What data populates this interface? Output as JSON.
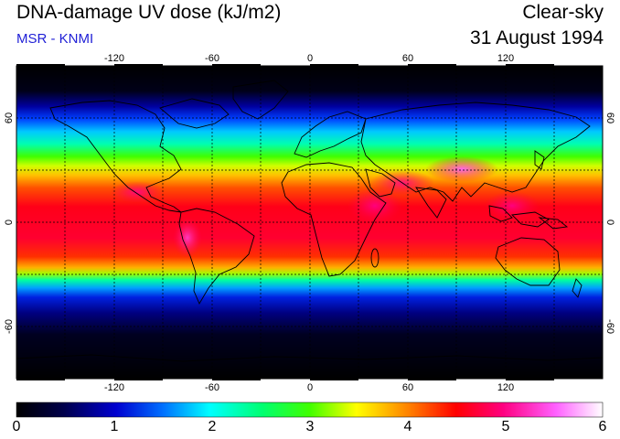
{
  "header": {
    "title": "DNA-damage UV dose (kJ/m2)",
    "subtitle": "MSR - KNMI",
    "condition": "Clear-sky",
    "date": "31 August 1994"
  },
  "map": {
    "longitude_ticks": [
      "-120",
      "-60",
      "0",
      "60",
      "120"
    ],
    "latitude_ticks": [
      "60",
      "0",
      "-60"
    ]
  },
  "colorbar": {
    "labels": [
      "0",
      "1",
      "2",
      "3",
      "4",
      "5",
      "6"
    ],
    "range": [
      0,
      6
    ]
  },
  "colors": {
    "title": "#000000",
    "subtitle": "#1f1fd6"
  }
}
